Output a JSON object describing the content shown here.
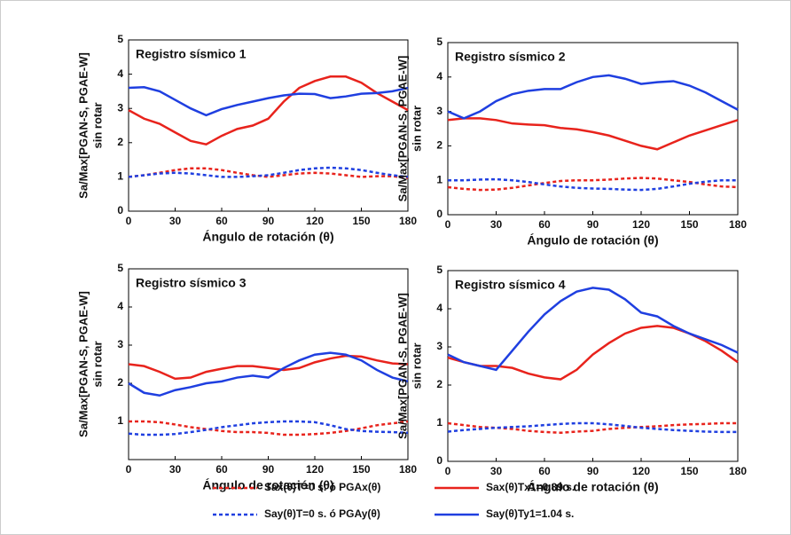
{
  "chart_data": [
    {
      "type": "line",
      "title": "Registro sísmico 1",
      "xlabel": "Ángulo de rotación (θ)",
      "ylabel": [
        "Sa/Max[PGAN-S, PGAE-W]",
        "sin rotar"
      ],
      "x": [
        0,
        10,
        20,
        30,
        40,
        50,
        60,
        70,
        80,
        90,
        100,
        110,
        120,
        130,
        140,
        150,
        160,
        170,
        180
      ],
      "xlim": [
        0,
        180
      ],
      "xticks": [
        0,
        30,
        60,
        90,
        120,
        150,
        180
      ],
      "ylim": [
        0,
        5
      ],
      "yticks": [
        0,
        1,
        2,
        3,
        4,
        5
      ],
      "series": [
        {
          "color": "#e8231c",
          "line_style": "dotted",
          "values": [
            1.0,
            1.05,
            1.12,
            1.2,
            1.25,
            1.25,
            1.2,
            1.12,
            1.05,
            1.0,
            1.05,
            1.1,
            1.12,
            1.1,
            1.05,
            1.0,
            1.02,
            1.02,
            0.97
          ]
        },
        {
          "color": "#1f3fe0",
          "line_style": "dotted",
          "values": [
            1.0,
            1.05,
            1.1,
            1.12,
            1.1,
            1.05,
            1.0,
            1.0,
            1.02,
            1.05,
            1.12,
            1.2,
            1.25,
            1.27,
            1.25,
            1.2,
            1.12,
            1.05,
            1.0
          ]
        },
        {
          "color": "#e8231c",
          "line_style": "solid",
          "values": [
            2.95,
            2.7,
            2.55,
            2.3,
            2.05,
            1.95,
            2.2,
            2.4,
            2.5,
            2.7,
            3.2,
            3.6,
            3.8,
            3.93,
            3.93,
            3.75,
            3.45,
            3.2,
            2.95
          ]
        },
        {
          "color": "#1f3fe0",
          "line_style": "solid",
          "values": [
            3.6,
            3.62,
            3.5,
            3.25,
            3.0,
            2.8,
            2.98,
            3.1,
            3.2,
            3.3,
            3.38,
            3.43,
            3.42,
            3.3,
            3.35,
            3.43,
            3.45,
            3.5,
            3.6
          ]
        }
      ]
    },
    {
      "type": "line",
      "title": "Registro sísmico 2",
      "xlabel": "Ángulo de rotación (θ)",
      "ylabel": [
        "Sa/Max[PGAN-S, PGAE-W]",
        "sin rotar"
      ],
      "x": [
        0,
        10,
        20,
        30,
        40,
        50,
        60,
        70,
        80,
        90,
        100,
        110,
        120,
        130,
        140,
        150,
        160,
        170,
        180
      ],
      "xlim": [
        0,
        180
      ],
      "xticks": [
        0,
        30,
        60,
        90,
        120,
        150,
        180
      ],
      "ylim": [
        0,
        5
      ],
      "yticks": [
        0,
        1,
        2,
        3,
        4,
        5
      ],
      "series": [
        {
          "color": "#e8231c",
          "line_style": "dotted",
          "values": [
            0.8,
            0.75,
            0.72,
            0.73,
            0.78,
            0.85,
            0.92,
            0.98,
            1.0,
            1.0,
            1.02,
            1.05,
            1.07,
            1.05,
            1.0,
            0.95,
            0.88,
            0.82,
            0.8
          ]
        },
        {
          "color": "#1f3fe0",
          "line_style": "dotted",
          "values": [
            1.0,
            1.0,
            1.02,
            1.03,
            1.0,
            0.95,
            0.88,
            0.82,
            0.78,
            0.76,
            0.75,
            0.73,
            0.72,
            0.75,
            0.82,
            0.9,
            0.96,
            1.0,
            1.0
          ]
        },
        {
          "color": "#e8231c",
          "line_style": "solid",
          "values": [
            2.75,
            2.8,
            2.8,
            2.75,
            2.65,
            2.62,
            2.6,
            2.52,
            2.48,
            2.4,
            2.3,
            2.15,
            2.0,
            1.9,
            2.1,
            2.3,
            2.45,
            2.6,
            2.75
          ]
        },
        {
          "color": "#1f3fe0",
          "line_style": "solid",
          "values": [
            3.0,
            2.8,
            3.0,
            3.3,
            3.5,
            3.6,
            3.65,
            3.65,
            3.85,
            4.0,
            4.05,
            3.95,
            3.8,
            3.85,
            3.88,
            3.75,
            3.55,
            3.3,
            3.05
          ]
        }
      ]
    },
    {
      "type": "line",
      "title": "Registro sísmico 3",
      "xlabel": "Ángulo de rotación (θ)",
      "ylabel": [
        "Sa/Max[PGAN-S, PGAE-W]",
        "sin rotar"
      ],
      "x": [
        0,
        10,
        20,
        30,
        40,
        50,
        60,
        70,
        80,
        90,
        100,
        110,
        120,
        130,
        140,
        150,
        160,
        170,
        180
      ],
      "xlim": [
        0,
        180
      ],
      "xticks": [
        0,
        30,
        60,
        90,
        120,
        150,
        180
      ],
      "ylim": [
        0,
        5
      ],
      "yticks": [
        1,
        2,
        3,
        4,
        5
      ],
      "series": [
        {
          "color": "#e8231c",
          "line_style": "dotted",
          "values": [
            1.0,
            1.0,
            0.98,
            0.92,
            0.85,
            0.8,
            0.75,
            0.72,
            0.72,
            0.7,
            0.65,
            0.65,
            0.67,
            0.7,
            0.75,
            0.82,
            0.9,
            0.95,
            1.0
          ]
        },
        {
          "color": "#1f3fe0",
          "line_style": "dotted",
          "values": [
            0.68,
            0.65,
            0.65,
            0.67,
            0.72,
            0.78,
            0.85,
            0.9,
            0.95,
            0.98,
            1.0,
            1.0,
            0.98,
            0.9,
            0.8,
            0.75,
            0.73,
            0.72,
            0.7
          ]
        },
        {
          "color": "#e8231c",
          "line_style": "solid",
          "values": [
            2.5,
            2.45,
            2.3,
            2.12,
            2.15,
            2.3,
            2.38,
            2.45,
            2.45,
            2.4,
            2.35,
            2.4,
            2.55,
            2.65,
            2.72,
            2.7,
            2.6,
            2.52,
            2.5
          ]
        },
        {
          "color": "#1f3fe0",
          "line_style": "solid",
          "values": [
            2.0,
            1.75,
            1.68,
            1.82,
            1.9,
            2.0,
            2.05,
            2.15,
            2.2,
            2.15,
            2.4,
            2.6,
            2.75,
            2.8,
            2.75,
            2.6,
            2.35,
            2.15,
            2.05
          ]
        }
      ]
    },
    {
      "type": "line",
      "title": "Registro sísmico 4",
      "xlabel": "Ángulo de rotación (θ)",
      "ylabel": [
        "Sa/Max[PGAN-S, PGAE-W]",
        "sin rotar"
      ],
      "x": [
        0,
        10,
        20,
        30,
        40,
        50,
        60,
        70,
        80,
        90,
        100,
        110,
        120,
        130,
        140,
        150,
        160,
        170,
        180
      ],
      "xlim": [
        0,
        180
      ],
      "xticks": [
        0,
        30,
        60,
        90,
        120,
        150,
        180
      ],
      "ylim": [
        0,
        5
      ],
      "yticks": [
        0,
        1,
        2,
        3,
        4,
        5
      ],
      "series": [
        {
          "color": "#e8231c",
          "line_style": "dotted",
          "values": [
            1.0,
            0.95,
            0.9,
            0.88,
            0.85,
            0.8,
            0.77,
            0.75,
            0.78,
            0.8,
            0.85,
            0.88,
            0.9,
            0.92,
            0.95,
            0.97,
            0.98,
            1.0,
            1.0
          ]
        },
        {
          "color": "#1f3fe0",
          "line_style": "dotted",
          "values": [
            0.78,
            0.82,
            0.85,
            0.88,
            0.9,
            0.92,
            0.95,
            0.98,
            1.0,
            1.0,
            0.97,
            0.93,
            0.88,
            0.85,
            0.82,
            0.8,
            0.78,
            0.77,
            0.77
          ]
        },
        {
          "color": "#e8231c",
          "line_style": "solid",
          "values": [
            2.72,
            2.6,
            2.5,
            2.5,
            2.45,
            2.3,
            2.2,
            2.15,
            2.4,
            2.8,
            3.1,
            3.35,
            3.5,
            3.55,
            3.5,
            3.35,
            3.15,
            2.9,
            2.6
          ]
        },
        {
          "color": "#1f3fe0",
          "line_style": "solid",
          "values": [
            2.8,
            2.6,
            2.5,
            2.4,
            2.9,
            3.4,
            3.85,
            4.2,
            4.45,
            4.55,
            4.5,
            4.25,
            3.9,
            3.8,
            3.55,
            3.35,
            3.2,
            3.05,
            2.85
          ]
        }
      ]
    }
  ],
  "legend": [
    {
      "name": "Sax(θ)T=0 s. ó PGAx(θ)",
      "color": "#e8231c",
      "line_style": "dotted"
    },
    {
      "name": "Say(θ)T=0 s. ó PGAy(θ)",
      "color": "#1f3fe0",
      "line_style": "dotted"
    },
    {
      "name": "Sax(θ)Tx1=0.89 s.",
      "color": "#e8231c",
      "line_style": "solid"
    },
    {
      "name": "Say(θ)Ty1=1.04 s.",
      "color": "#1f3fe0",
      "line_style": "solid"
    }
  ]
}
